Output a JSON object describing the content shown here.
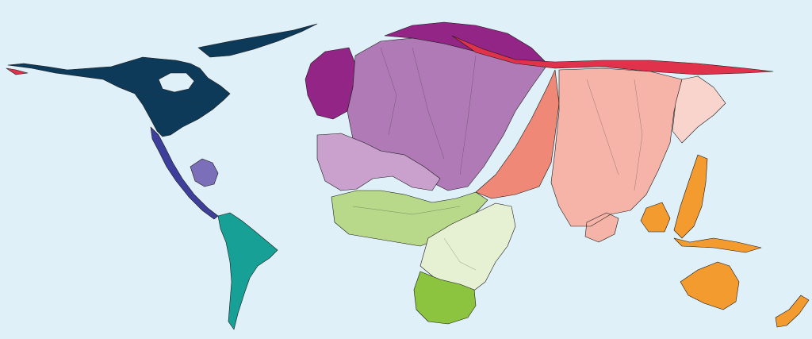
{
  "map": {
    "type": "cartogram",
    "background": "#e0f0f8",
    "region_colors": {
      "north_america": "#0e3a5a",
      "central_america": "#3d3f9a",
      "caribbean": "#7a6fb8",
      "south_america": "#17a096",
      "western_europe": "#922585",
      "eastern_europe": "#b07ab6",
      "middle_east": "#c9a1cc",
      "north_africa": "#b8d98a",
      "southern_africa": "#8cc43f",
      "central_africa": "#e6f0d2",
      "russia_arctic": "#e0324a",
      "south_asia": "#f08878",
      "east_asia": "#f6b4a8",
      "japan_korea": "#f9d4cc",
      "southeast_asia": "#f39b2e",
      "oceania": "#f39b2e"
    }
  }
}
